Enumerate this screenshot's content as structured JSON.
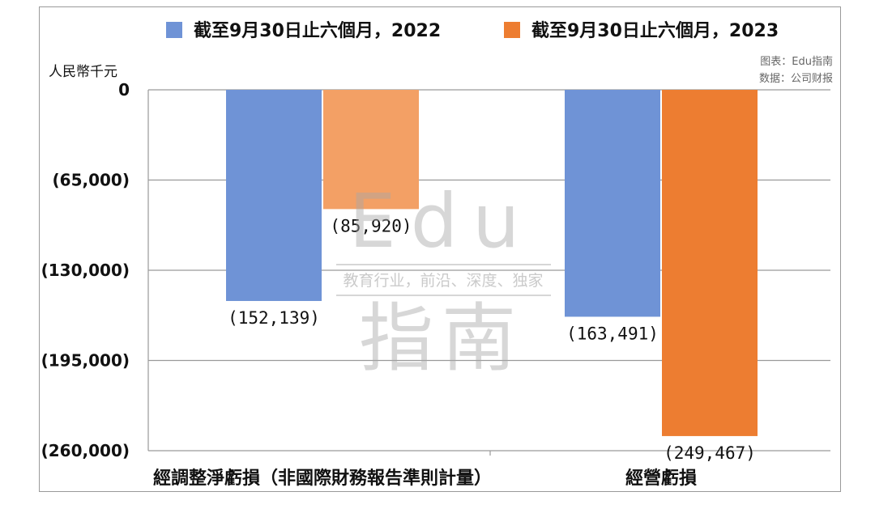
{
  "chart_data": {
    "type": "bar",
    "categories": [
      "經調整淨虧損（非國際財務報告準則計量）",
      "經營虧損"
    ],
    "series": [
      {
        "name": "截至9月30日止六個月，2022",
        "values": [
          -152139,
          -163491
        ],
        "labels": [
          "(152,139)",
          "(163,491)"
        ],
        "color": "#6f93d6"
      },
      {
        "name": "截至9月30日止六個月，2023",
        "values": [
          -85920,
          -249467
        ],
        "labels": [
          "(85,920)",
          "(249,467)"
        ],
        "colors": [
          "#f3a065",
          "#ed7d31"
        ],
        "color": "#ed7d31"
      }
    ],
    "ylim": [
      -260000,
      0
    ],
    "yticks": [
      0,
      -65000,
      -130000,
      -195000,
      -260000
    ],
    "ytick_labels": [
      "0",
      "(65,000)",
      "(130,000)",
      "(195,000)",
      "(260,000)"
    ],
    "ylabel": "人民幣千元",
    "legend_position": "top",
    "grid": true
  },
  "source_note": {
    "line1": "图表：Edu指南",
    "line2": "数据：公司财报"
  },
  "watermark": {
    "top": "Edu",
    "middle": "教育行业，前沿、深度、独家",
    "bottom": "指南"
  }
}
